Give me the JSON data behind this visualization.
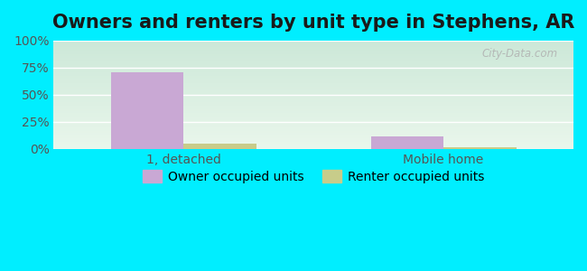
{
  "title": "Owners and renters by unit type in Stephens, AR",
  "categories": [
    "1, detached",
    "Mobile home"
  ],
  "owner_values": [
    71.0,
    12.0
  ],
  "renter_values": [
    5.0,
    2.0
  ],
  "owner_color": "#c9a8d4",
  "renter_color": "#c8cc8a",
  "ylim": [
    0,
    100
  ],
  "yticks": [
    0,
    25,
    50,
    75,
    100
  ],
  "ytick_labels": [
    "0%",
    "25%",
    "50%",
    "75%",
    "100%"
  ],
  "bar_width": 0.28,
  "outer_bg": "#00eeff",
  "grad_top": "#cce8d8",
  "grad_bottom": "#eaf7ec",
  "legend_owner": "Owner occupied units",
  "legend_renter": "Renter occupied units",
  "watermark": "City-Data.com",
  "title_fontsize": 15,
  "tick_fontsize": 10,
  "legend_fontsize": 10
}
